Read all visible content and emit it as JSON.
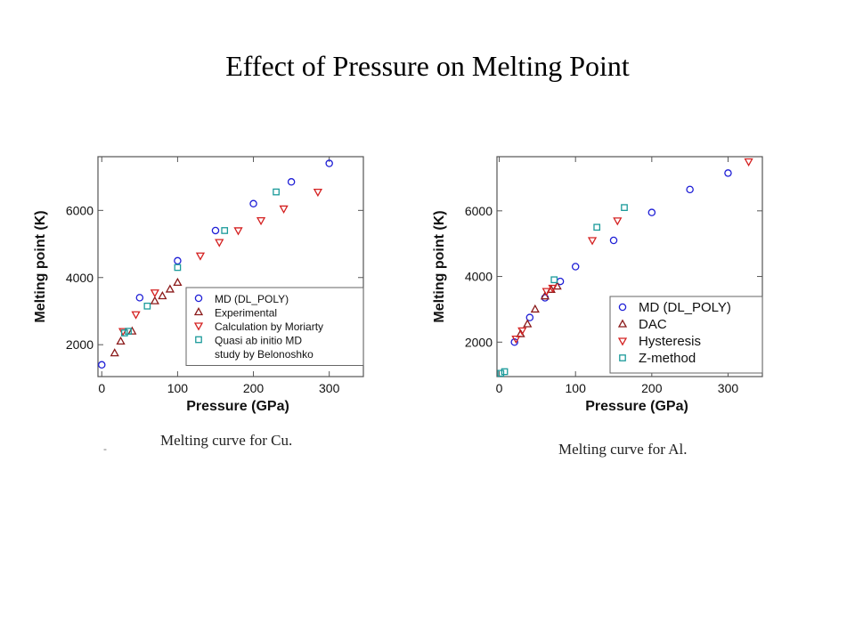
{
  "slide": {
    "title": "Effect of Pressure on Melting Point",
    "captions": [
      "Melting curve for Cu.",
      "Melting curve for Al."
    ],
    "stray_mark": "-"
  },
  "chart_data": [
    {
      "type": "scatter",
      "title": "",
      "caption": "Melting curve for Cu.",
      "xlabel": "Pressure (GPa)",
      "ylabel": "Melting point (K)",
      "xlim": [
        -5,
        345
      ],
      "ylim": [
        1050,
        7600
      ],
      "xticks": [
        0,
        100,
        200,
        300
      ],
      "yticks": [
        2000,
        4000,
        6000
      ],
      "legend_position": "bottom-right",
      "series": [
        {
          "name": "MD (DL_POLY)",
          "marker": "circle",
          "color": "#1f1fd6",
          "points": [
            [
              0,
              1400
            ],
            [
              50,
              3400
            ],
            [
              100,
              4500
            ],
            [
              150,
              5400
            ],
            [
              200,
              6200
            ],
            [
              250,
              6850
            ],
            [
              300,
              7400
            ]
          ]
        },
        {
          "name": "Experimental",
          "marker": "triangle-up",
          "color": "#8b1a1a",
          "points": [
            [
              17,
              1750
            ],
            [
              25,
              2100
            ],
            [
              40,
              2400
            ],
            [
              70,
              3300
            ],
            [
              80,
              3450
            ],
            [
              90,
              3650
            ],
            [
              100,
              3850
            ]
          ]
        },
        {
          "name": "Calculation by Moriarty",
          "marker": "triangle-down",
          "color": "#d42020",
          "points": [
            [
              28,
              2400
            ],
            [
              45,
              2900
            ],
            [
              70,
              3550
            ],
            [
              130,
              4650
            ],
            [
              155,
              5050
            ],
            [
              180,
              5400
            ],
            [
              210,
              5700
            ],
            [
              240,
              6050
            ],
            [
              285,
              6550
            ]
          ]
        },
        {
          "name": "Quasi ab initio MD\nstudy  by Belonoshko",
          "marker": "square",
          "color": "#1a9a9a",
          "points": [
            [
              30,
              2350
            ],
            [
              35,
              2400
            ],
            [
              60,
              3150
            ],
            [
              100,
              4300
            ],
            [
              162,
              5400
            ],
            [
              230,
              6550
            ]
          ]
        }
      ]
    },
    {
      "type": "scatter",
      "title": "",
      "caption": "Melting curve for Al.",
      "xlabel": "Pressure (GPa)",
      "ylabel": "Melting point (K)",
      "xlim": [
        -3,
        345
      ],
      "ylim": [
        950,
        7650
      ],
      "xticks": [
        0,
        100,
        200,
        300
      ],
      "yticks": [
        2000,
        4000,
        6000
      ],
      "legend_position": "bottom-right",
      "series": [
        {
          "name": "MD (DL_POLY)",
          "marker": "circle",
          "color": "#1f1fd6",
          "points": [
            [
              20,
              2000
            ],
            [
              40,
              2750
            ],
            [
              60,
              3350
            ],
            [
              80,
              3850
            ],
            [
              100,
              4300
            ],
            [
              150,
              5100
            ],
            [
              200,
              5950
            ],
            [
              250,
              6650
            ],
            [
              300,
              7150
            ]
          ]
        },
        {
          "name": "DAC",
          "marker": "triangle-up",
          "color": "#8b1a1a",
          "points": [
            [
              28,
              2250
            ],
            [
              37,
              2550
            ],
            [
              47,
              3000
            ],
            [
              60,
              3400
            ],
            [
              68,
              3600
            ],
            [
              76,
              3700
            ]
          ]
        },
        {
          "name": "Hysteresis",
          "marker": "triangle-down",
          "color": "#d42020",
          "points": [
            [
              22,
              2100
            ],
            [
              30,
              2350
            ],
            [
              62,
              3550
            ],
            [
              70,
              3650
            ],
            [
              122,
              5100
            ],
            [
              155,
              5700
            ],
            [
              327,
              7500
            ]
          ]
        },
        {
          "name": "Z-method",
          "marker": "square",
          "color": "#1a9a9a",
          "points": [
            [
              2,
              1050
            ],
            [
              7,
              1100
            ],
            [
              72,
              3900
            ],
            [
              128,
              5500
            ],
            [
              164,
              6100
            ]
          ]
        }
      ]
    }
  ]
}
